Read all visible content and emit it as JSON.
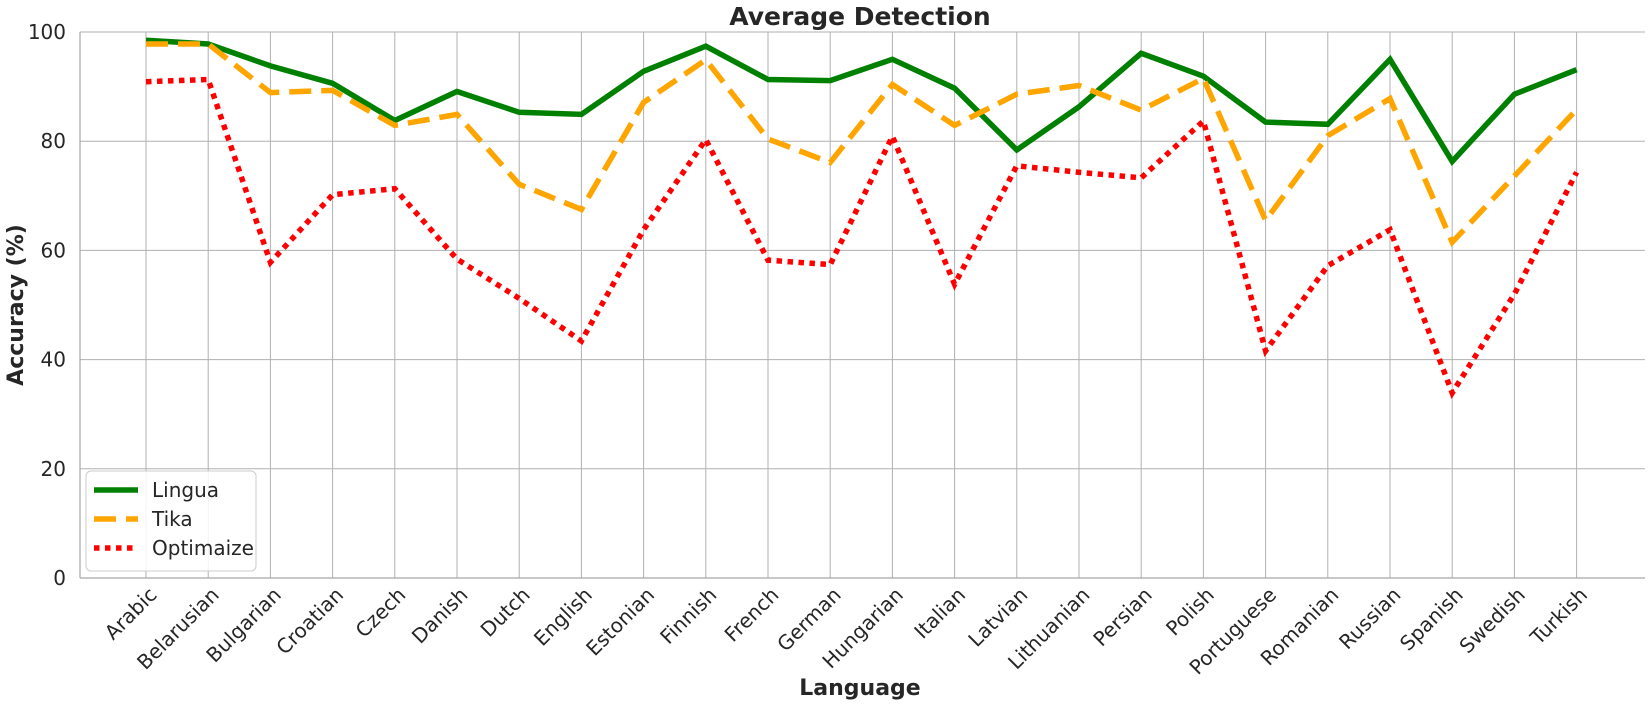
{
  "chart_data": {
    "type": "line",
    "title": "Average Detection",
    "xlabel": "Language",
    "ylabel": "Accuracy (%)",
    "ylim": [
      0,
      100
    ],
    "yticks": [
      0,
      20,
      40,
      60,
      80,
      100
    ],
    "grid": true,
    "legend_position": "lower-left",
    "categories": [
      "Arabic",
      "Belarusian",
      "Bulgarian",
      "Croatian",
      "Czech",
      "Danish",
      "Dutch",
      "English",
      "Estonian",
      "Finnish",
      "French",
      "German",
      "Hungarian",
      "Italian",
      "Latvian",
      "Lithuanian",
      "Persian",
      "Polish",
      "Portuguese",
      "Romanian",
      "Russian",
      "Spanish",
      "Swedish",
      "Turkish"
    ],
    "series": [
      {
        "name": "Lingua",
        "color": "#008000",
        "style": "solid",
        "values": [
          98.5,
          97.8,
          93.8,
          90.6,
          83.8,
          89.1,
          85.3,
          84.9,
          92.8,
          97.4,
          91.3,
          91.1,
          95.0,
          89.7,
          78.4,
          86.3,
          96.1,
          91.9,
          83.5,
          83.1,
          95.0,
          76.3,
          88.6,
          93.1
        ]
      },
      {
        "name": "Tika",
        "color": "#FFA500",
        "style": "dashed",
        "values": [
          97.8,
          97.8,
          88.9,
          89.3,
          82.9,
          84.9,
          72.1,
          67.5,
          87.1,
          94.9,
          80.4,
          76.1,
          90.4,
          82.9,
          88.6,
          90.2,
          85.7,
          91.5,
          65.5,
          81.0,
          87.8,
          61.5,
          73.6,
          85.8
        ]
      },
      {
        "name": "Optimaize",
        "color": "#FF0000",
        "style": "dotted",
        "values": [
          90.9,
          91.3,
          57.8,
          70.2,
          71.3,
          58.4,
          51.2,
          43.4,
          63.8,
          80.3,
          58.2,
          57.4,
          80.9,
          53.8,
          75.5,
          74.3,
          73.3,
          83.7,
          41.6,
          57.2,
          63.8,
          33.9,
          52.0,
          74.3
        ]
      }
    ]
  }
}
